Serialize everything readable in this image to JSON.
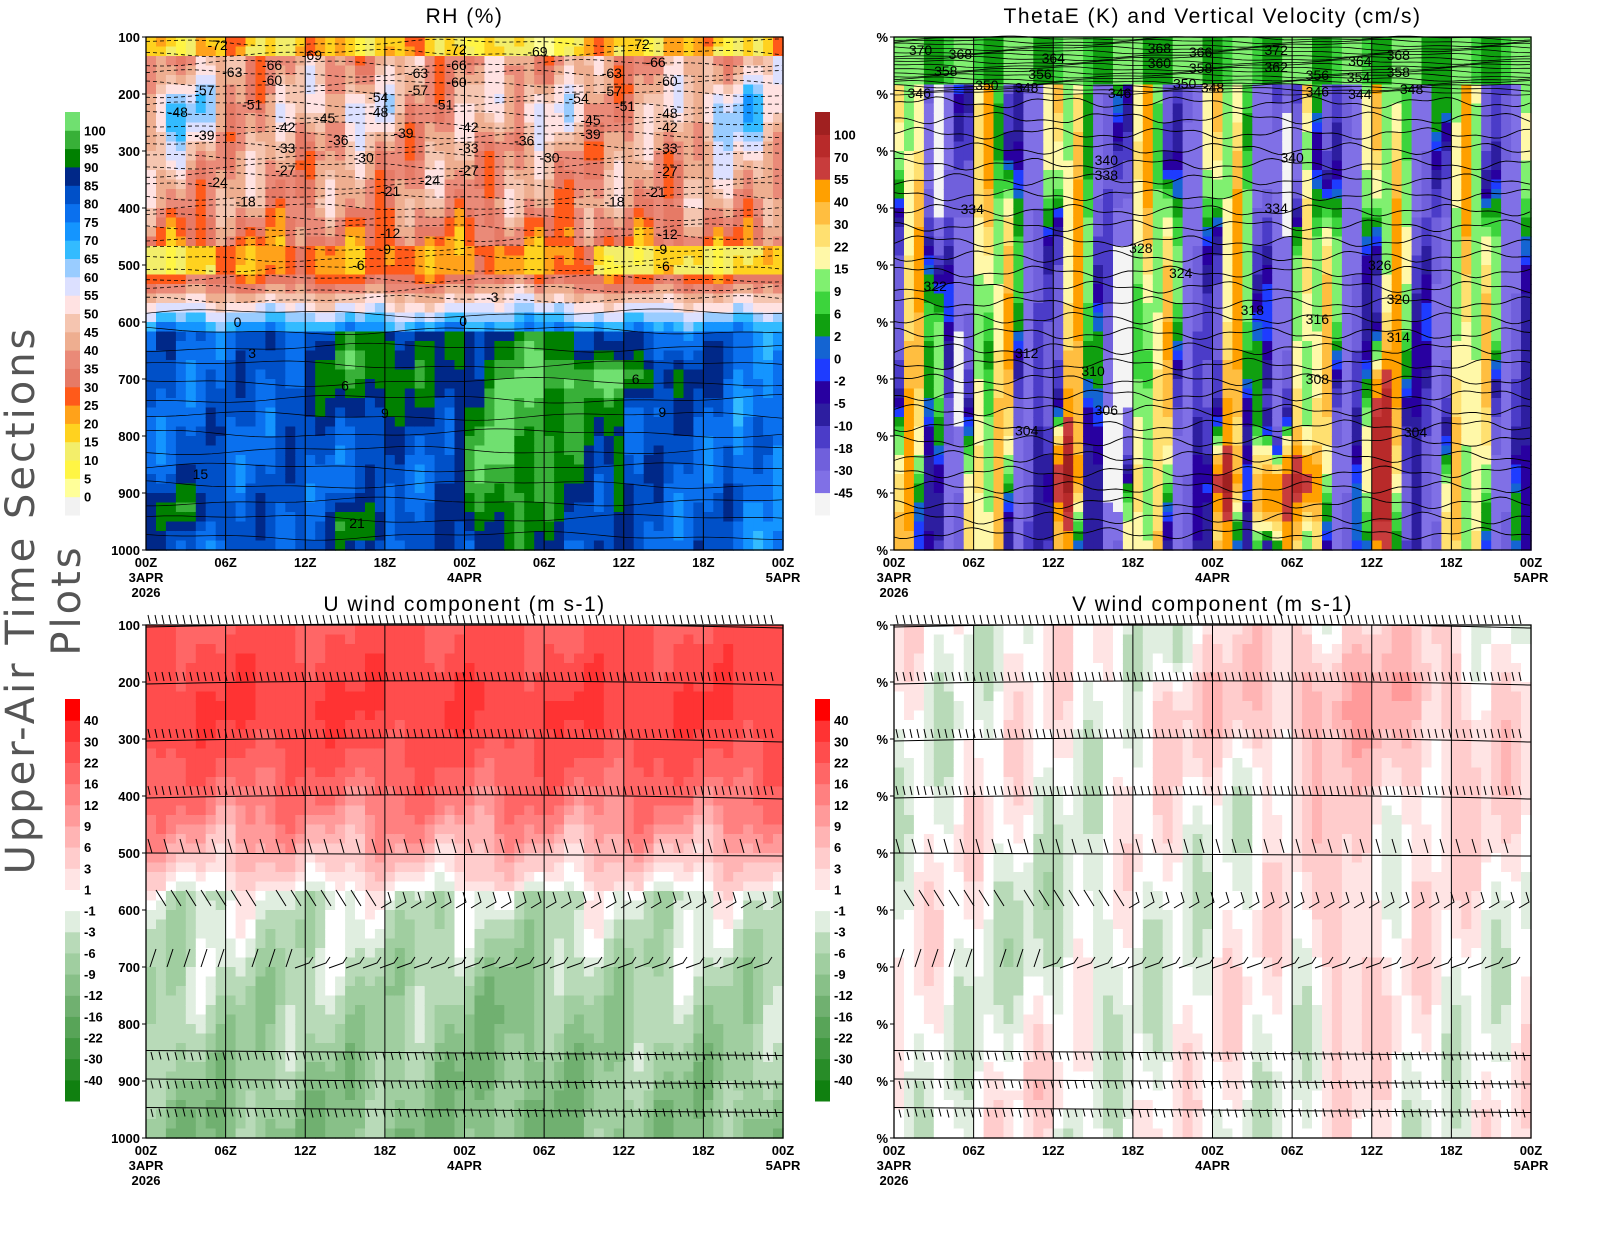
{
  "side_title": "Upper-Air Time Sections Plots",
  "x_axis": {
    "ticks": [
      "00Z",
      "06Z",
      "12Z",
      "18Z",
      "00Z",
      "06Z",
      "12Z",
      "18Z",
      "00Z"
    ],
    "date_labels": [
      {
        "tick": 0,
        "day": "3APR",
        "year": "2026"
      },
      {
        "tick": 4,
        "day": "4APR",
        "year": ""
      },
      {
        "tick": 8,
        "day": "5APR",
        "year": ""
      }
    ]
  },
  "chart_data": [
    {
      "id": "rh",
      "type": "heatmap",
      "title": "RH (%)",
      "xlabel": "",
      "ylabel": "",
      "y_ticks": [
        "100",
        "200",
        "300",
        "400",
        "500",
        "600",
        "700",
        "800",
        "900",
        "1000"
      ],
      "ylim": [
        1000,
        100
      ],
      "xlim": [
        "00Z 3APR 2026",
        "00Z 5APR 2026"
      ],
      "grid": "vertical lines every 6h",
      "colorbar": {
        "levels": [
          0,
          5,
          10,
          15,
          20,
          25,
          30,
          35,
          40,
          45,
          50,
          55,
          60,
          65,
          70,
          75,
          80,
          85,
          90,
          95,
          100
        ],
        "colors": [
          "#f2f2f2",
          "#ffff99",
          "#fff544",
          "#f3ee6a",
          "#ffd21f",
          "#ffa21a",
          "#ff5a1a",
          "#e67a66",
          "#ea8a78",
          "#eeae90",
          "#f5c5b0",
          "#ffe2e2",
          "#dce0ff",
          "#99ccff",
          "#33bbff",
          "#1495ff",
          "#0a70ee",
          "#0050c8",
          "#002888",
          "#008000",
          "#38b038",
          "#70e070"
        ]
      },
      "contour_labels": [
        "-72",
        "-69",
        "-66",
        "-63",
        "-60",
        "-57",
        "-51",
        "-48",
        "-42",
        "-45",
        "-39",
        "-36",
        "-33",
        "-30",
        "-27",
        "-24",
        "-18",
        "-21",
        "-12",
        "-9",
        "-6",
        "-54",
        "-48",
        "-63",
        "-57",
        "-51",
        "-39",
        "-24",
        "-72",
        "-66",
        "-60",
        "-42",
        "-33",
        "-27",
        "-69",
        "-36",
        "-30",
        "-54",
        "-45",
        "-39",
        "-63",
        "-57",
        "-51",
        "-72",
        "-66",
        "-60",
        "-48",
        "-42",
        "-33",
        "-27",
        "-21",
        "-18",
        "-12",
        "-9",
        "-6",
        "-3",
        "0",
        "0",
        "3",
        "6",
        "6",
        "9",
        "9",
        "15",
        "21"
      ]
    },
    {
      "id": "thetae",
      "type": "heatmap",
      "title": "ThetaE (K) and Vertical Velocity (cm/s)",
      "xlabel": "",
      "ylabel": "",
      "y_ticks": [
        "%",
        "%",
        "%",
        "%",
        "%",
        "%",
        "%",
        "%",
        "%",
        "%"
      ],
      "xlim": [
        "00Z 3APR 2026",
        "00Z 5APR 2026"
      ],
      "colorbar": {
        "levels": [
          -45,
          -30,
          -18,
          -10,
          -5,
          -2,
          0,
          2,
          6,
          9,
          15,
          22,
          30,
          40,
          55,
          70,
          100
        ],
        "colors": [
          "#f4f4f4",
          "#8070e6",
          "#7060dc",
          "#4b3cc8",
          "#2d1ea0",
          "#2800a0",
          "#1e3cff",
          "#1464d2",
          "#10a010",
          "#3cd43c",
          "#80f070",
          "#fff8a8",
          "#ffe070",
          "#ffbe40",
          "#ffa000",
          "#c83c3c",
          "#b82a2a",
          "#a02020"
        ]
      },
      "contour_labels": [
        "370",
        "368",
        "358",
        "346",
        "350",
        "348",
        "364",
        "356",
        "346",
        "368",
        "366",
        "360",
        "358",
        "350",
        "348",
        "372",
        "362",
        "356",
        "346",
        "364",
        "354",
        "344",
        "368",
        "358",
        "348",
        "340",
        "338",
        "340",
        "334",
        "334",
        "328",
        "324",
        "326",
        "322",
        "320",
        "318",
        "316",
        "314",
        "312",
        "310",
        "308",
        "306",
        "304",
        "304"
      ]
    },
    {
      "id": "u",
      "type": "heatmap",
      "title": "U wind component (m s-1)",
      "xlabel": "",
      "ylabel": "",
      "y_ticks": [
        "100",
        "200",
        "300",
        "400",
        "500",
        "600",
        "700",
        "800",
        "900",
        "1000"
      ],
      "xlim": [
        "00Z 3APR 2026",
        "00Z 5APR 2026"
      ],
      "wind_barbs": true,
      "colorbar": {
        "levels": [
          -40,
          -30,
          -22,
          -16,
          -12,
          -9,
          -6,
          -3,
          -1,
          1,
          3,
          6,
          9,
          12,
          16,
          22,
          30,
          40
        ],
        "colors": [
          "#108010",
          "#288c28",
          "#409840",
          "#58a458",
          "#70b070",
          "#88c088",
          "#a0cea0",
          "#b8dab8",
          "#e0eee0",
          "#ffffff",
          "#ffe4e4",
          "#ffcccc",
          "#ffb4b4",
          "#ff9a9a",
          "#ff8080",
          "#ff6666",
          "#ff4d4d",
          "#ff3333",
          "#ff0000"
        ]
      }
    },
    {
      "id": "v",
      "type": "heatmap",
      "title": "V wind component (m s-1)",
      "xlabel": "",
      "ylabel": "",
      "y_ticks": [
        "%",
        "%",
        "%",
        "%",
        "%",
        "%",
        "%",
        "%",
        "%",
        "%"
      ],
      "xlim": [
        "00Z 3APR 2026",
        "00Z 5APR 2026"
      ],
      "wind_barbs": true,
      "colorbar": {
        "levels": [
          -40,
          -30,
          -22,
          -16,
          -12,
          -9,
          -6,
          -3,
          -1,
          1,
          3,
          6,
          9,
          12,
          16,
          22,
          30,
          40
        ],
        "colors": [
          "#108010",
          "#288c28",
          "#409840",
          "#58a458",
          "#70b070",
          "#88c088",
          "#a0cea0",
          "#b8dab8",
          "#e0eee0",
          "#ffffff",
          "#ffe4e4",
          "#ffcccc",
          "#ffb4b4",
          "#ff9a9a",
          "#ff8080",
          "#ff6666",
          "#ff4d4d",
          "#ff3333",
          "#ff0000"
        ]
      }
    }
  ]
}
